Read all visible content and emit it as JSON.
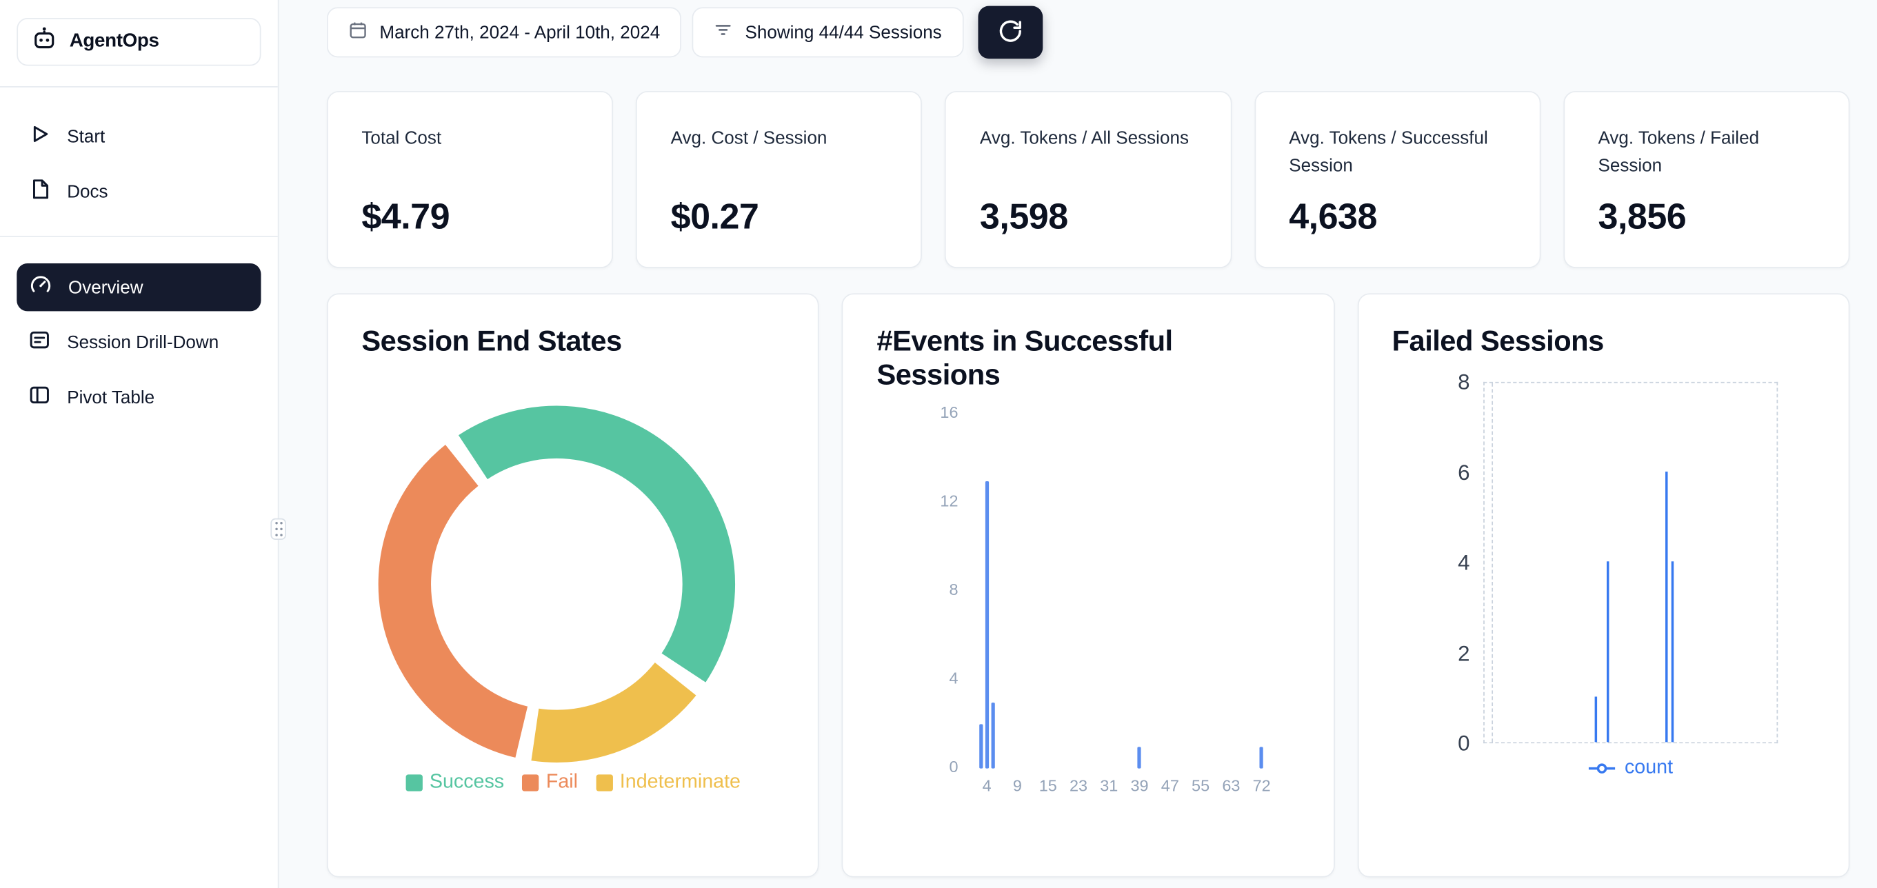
{
  "app": {
    "name": "AgentOps"
  },
  "sidebar": {
    "items": [
      {
        "label": "Start"
      },
      {
        "label": "Docs"
      },
      {
        "label": "Overview",
        "active": true
      },
      {
        "label": "Session Drill-Down"
      },
      {
        "label": "Pivot Table"
      }
    ]
  },
  "toolbar": {
    "date_range": "March 27th, 2024 - April 10th, 2024",
    "sessions_filter": "Showing 44/44 Sessions"
  },
  "stats": [
    {
      "label": "Total Cost",
      "value": "$4.79"
    },
    {
      "label": "Avg. Cost / Session",
      "value": "$0.27"
    },
    {
      "label": "Avg. Tokens / All Sessions",
      "value": "3,598"
    },
    {
      "label": "Avg. Tokens / Successful Session",
      "value": "4,638"
    },
    {
      "label": "Avg. Tokens / Failed Session",
      "value": "3,856"
    }
  ],
  "colors": {
    "accent_dark": "#151b2e",
    "page_bg": "#f8fafc",
    "card_border": "#e7ebf0",
    "success": "#56c5a1",
    "fail": "#ec8a5a",
    "indeterminate": "#efbf4d",
    "bar_blue": "#5b8def",
    "count_blue": "#3779f0"
  },
  "chart_data": [
    {
      "type": "pie",
      "title": "Session End States",
      "donut": true,
      "legend_position": "bottom",
      "slices": [
        {
          "label": "Success",
          "pct": 45,
          "color": "#56c5a1"
        },
        {
          "label": "Fail",
          "pct": 37,
          "color": "#ec8a5a"
        },
        {
          "label": "Indeterminate",
          "pct": 18,
          "color": "#efbf4d"
        }
      ],
      "draw_order": [
        "Success",
        "Indeterminate",
        "Fail"
      ],
      "start_angle_deg": 126,
      "values_estimated_from_arcs": true
    },
    {
      "type": "bar",
      "title": "#Events in Successful Sessions",
      "xlabel": "",
      "ylabel": "",
      "x_ticks": [
        4,
        9,
        15,
        23,
        31,
        39,
        47,
        55,
        63,
        72
      ],
      "y_ticks": [
        0,
        4,
        8,
        12,
        16
      ],
      "ylim": [
        0,
        16
      ],
      "bars": [
        {
          "x": 3,
          "count": 2
        },
        {
          "x": 4,
          "count": 13
        },
        {
          "x": 5,
          "count": 3
        },
        {
          "x": 39,
          "count": 1
        },
        {
          "x": 72,
          "count": 1
        }
      ],
      "bar_color": "#5b8def",
      "grid": false
    },
    {
      "type": "line",
      "title": "Failed Sessions",
      "y_ticks": [
        0,
        2,
        4,
        6,
        8
      ],
      "ylim": [
        0,
        8
      ],
      "grid": "dashed-border",
      "x_gridlines_frac": [
        0.025
      ],
      "x_axis_labels_visible": false,
      "legend_position": "bottom",
      "series": [
        {
          "name": "count",
          "color": "#3779f0",
          "spikes": [
            {
              "x_frac": 0.38,
              "value": 1
            },
            {
              "x_frac": 0.42,
              "value": 4
            },
            {
              "x_frac": 0.62,
              "value": 6
            },
            {
              "x_frac": 0.64,
              "value": 4
            }
          ]
        }
      ]
    }
  ]
}
